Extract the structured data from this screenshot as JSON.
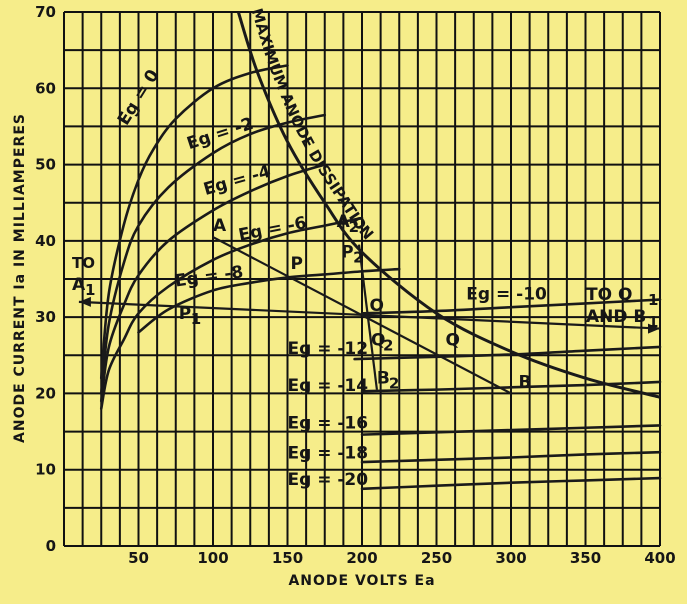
{
  "chart_data": {
    "type": "line",
    "title": "",
    "xlabel": "ANODE VOLTS Ea",
    "ylabel": "ANODE CURRENT Ia IN MILLIAMPERES",
    "xlim": [
      0,
      400
    ],
    "ylim": [
      0,
      70
    ],
    "grid": true,
    "xticks": [
      "50",
      "100",
      "150",
      "200",
      "250",
      "300",
      "350",
      "400"
    ],
    "yticks": [
      "0",
      "10",
      "20",
      "30",
      "40",
      "50",
      "60",
      "70"
    ],
    "series": [
      {
        "name": "Eg = 0",
        "points": [
          [
            25,
            22
          ],
          [
            30,
            33
          ],
          [
            40,
            42
          ],
          [
            50,
            48
          ],
          [
            60,
            52
          ],
          [
            75,
            56
          ],
          [
            100,
            60
          ],
          [
            125,
            62
          ],
          [
            150,
            63
          ]
        ]
      },
      {
        "name": "Eg = -2",
        "points": [
          [
            25,
            20
          ],
          [
            30,
            29
          ],
          [
            40,
            37
          ],
          [
            50,
            42
          ],
          [
            70,
            47
          ],
          [
            100,
            51.5
          ],
          [
            125,
            54
          ],
          [
            150,
            55.5
          ],
          [
            175,
            56.5
          ]
        ]
      },
      {
        "name": "Eg = -4",
        "points": [
          [
            25,
            19
          ],
          [
            30,
            26
          ],
          [
            40,
            31.5
          ],
          [
            50,
            35.5
          ],
          [
            70,
            40
          ],
          [
            100,
            44
          ],
          [
            125,
            46.5
          ],
          [
            150,
            48.5
          ],
          [
            175,
            50
          ]
        ]
      },
      {
        "name": "Eg = -6",
        "points": [
          [
            25,
            18
          ],
          [
            30,
            23
          ],
          [
            40,
            27
          ],
          [
            50,
            30.5
          ],
          [
            70,
            34
          ],
          [
            100,
            37.5
          ],
          [
            125,
            39.5
          ],
          [
            150,
            41
          ],
          [
            175,
            42
          ],
          [
            200,
            43
          ]
        ]
      },
      {
        "name": "Eg = -8",
        "points": [
          [
            50,
            28
          ],
          [
            70,
            31
          ],
          [
            100,
            33.5
          ],
          [
            125,
            34.5
          ],
          [
            150,
            35.2
          ],
          [
            175,
            35.6
          ],
          [
            200,
            36
          ],
          [
            225,
            36.3
          ]
        ]
      },
      {
        "name": "Eg = -10",
        "points": [
          [
            200,
            30.5
          ],
          [
            250,
            30.8
          ],
          [
            300,
            31.3
          ],
          [
            350,
            31.8
          ],
          [
            400,
            32.3
          ]
        ]
      },
      {
        "name": "Eg = -12",
        "points": [
          [
            195,
            24.5
          ],
          [
            250,
            24.8
          ],
          [
            300,
            25.1
          ],
          [
            350,
            25.6
          ],
          [
            400,
            26.1
          ]
        ]
      },
      {
        "name": "Eg = -14",
        "points": [
          [
            200,
            20.3
          ],
          [
            250,
            20.5
          ],
          [
            300,
            20.8
          ],
          [
            350,
            21.1
          ],
          [
            400,
            21.5
          ]
        ]
      },
      {
        "name": "Eg = -16",
        "points": [
          [
            200,
            14.6
          ],
          [
            250,
            14.9
          ],
          [
            300,
            15.2
          ],
          [
            350,
            15.5
          ],
          [
            400,
            15.8
          ]
        ]
      },
      {
        "name": "Eg = -18",
        "points": [
          [
            200,
            11
          ],
          [
            250,
            11.3
          ],
          [
            300,
            11.6
          ],
          [
            350,
            12
          ],
          [
            400,
            12.3
          ]
        ]
      },
      {
        "name": "Eg = -20",
        "points": [
          [
            200,
            7.5
          ],
          [
            250,
            7.9
          ],
          [
            300,
            8.3
          ],
          [
            350,
            8.6
          ],
          [
            400,
            8.9
          ]
        ]
      }
    ],
    "max_dissipation_curve": [
      [
        117,
        70
      ],
      [
        130,
        62
      ],
      [
        150,
        53
      ],
      [
        175,
        45
      ],
      [
        200,
        38.5
      ],
      [
        250,
        30.5
      ],
      [
        300,
        25.5
      ],
      [
        350,
        22
      ],
      [
        400,
        19.5
      ]
    ],
    "load_lines": [
      {
        "from": [
          100,
          40.5
        ],
        "to": [
          300,
          20
        ]
      },
      {
        "from": [
          198,
          39.5
        ],
        "to": [
          210,
          20.5
        ]
      },
      {
        "from": [
          10,
          32
        ],
        "to": [
          400,
          28.5
        ]
      }
    ],
    "points_labels": [
      {
        "text": "A",
        "x": 100,
        "y": 40.5
      },
      {
        "text": "A",
        "sub": "2",
        "x": 183,
        "y": 41
      },
      {
        "text": "P",
        "x": 152,
        "y": 35.5
      },
      {
        "text": "P",
        "sub": "2",
        "x": 186,
        "y": 37
      },
      {
        "text": "P",
        "sub": "1",
        "x": 77,
        "y": 29
      },
      {
        "text": "O",
        "x": 205,
        "y": 30
      },
      {
        "text": "Q",
        "x": 256,
        "y": 25.5
      },
      {
        "text": "Q",
        "sub": "2",
        "x": 206,
        "y": 25.5
      },
      {
        "text": "B",
        "x": 305,
        "y": 20
      },
      {
        "text": "B",
        "sub": "2",
        "x": 210,
        "y": 20.5
      }
    ],
    "annotations": {
      "to_a1_top": "TO",
      "to_a1_main": "A",
      "to_a1_sub": "1",
      "to_q1_top": "TO Q",
      "to_q1_sub": "1",
      "and_b1": "AND B",
      "and_b1_sub": "1",
      "mad_label": "MAXIMUM ANODE DISSIPATION"
    },
    "curve_labels": [
      {
        "text": "Eg = 0",
        "x": 42,
        "y": 55,
        "rot": -58
      },
      {
        "text": "Eg = -2",
        "x": 84,
        "y": 52,
        "rot": -18
      },
      {
        "text": "Eg = -4",
        "x": 95,
        "y": 46,
        "rot": -16
      },
      {
        "text": "Eg = -6",
        "x": 118,
        "y": 40,
        "rot": -11
      },
      {
        "text": "Eg = -8",
        "x": 75,
        "y": 34,
        "rot": -8
      },
      {
        "text": "Eg = -10",
        "x": 270,
        "y": 32.3,
        "rot": 0
      },
      {
        "text": "Eg = -12",
        "x": 150,
        "y": 25.2,
        "rot": 0
      },
      {
        "text": "Eg = -14",
        "x": 150,
        "y": 20.3,
        "rot": 0
      },
      {
        "text": "Eg = -16",
        "x": 150,
        "y": 15.4,
        "rot": 0
      },
      {
        "text": "Eg = -18",
        "x": 150,
        "y": 11.5,
        "rot": 0
      },
      {
        "text": "Eg = -20",
        "x": 150,
        "y": 8,
        "rot": 0
      }
    ]
  }
}
